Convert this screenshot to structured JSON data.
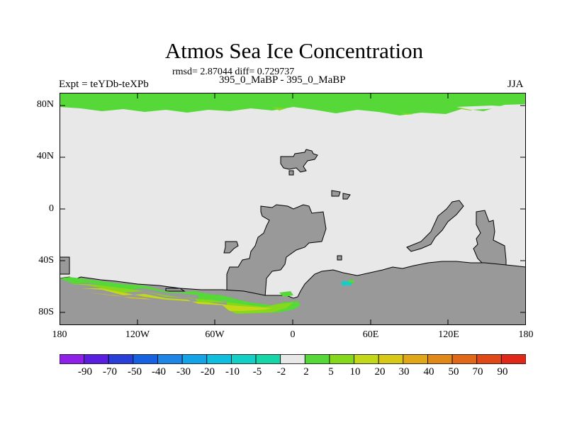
{
  "title": "Atmos Sea Ice Concentration",
  "stats": "rmsd= 2.87044 diff= 0.729737",
  "left_label": "Expt = teYDb-teXPb",
  "center_label": "395_0_MaBP - 395_0_MaBP",
  "right_label": "JJA",
  "y_axis": {
    "ticks": [
      "80N",
      "40N",
      "0",
      "40S",
      "80S"
    ]
  },
  "x_axis": {
    "ticks": [
      "180",
      "120W",
      "60W",
      "0",
      "60E",
      "120E",
      "180"
    ]
  },
  "colorbar": {
    "labels": [
      "-90",
      "-70",
      "-50",
      "-40",
      "-30",
      "-20",
      "-10",
      "-5",
      "-2",
      "2",
      "5",
      "10",
      "20",
      "30",
      "40",
      "50",
      "70",
      "90"
    ],
    "colors": [
      "#8f20e8",
      "#5a1ee0",
      "#2a3ed8",
      "#1762e0",
      "#1f86e8",
      "#15a3e8",
      "#10bedd",
      "#14cfc6",
      "#16d6a8",
      "#e8e8e8",
      "#55d838",
      "#85d81c",
      "#c2d818",
      "#d8c818",
      "#e0a818",
      "#e08818",
      "#e06818",
      "#e04818",
      "#e02818"
    ]
  },
  "colors": {
    "land": "#999999",
    "background": "#e8e8e8",
    "ice_low": "#55d838",
    "ice_mid": "#85d81c",
    "ice_high": "#c2d818",
    "ice_peak": "#d8c818"
  }
}
